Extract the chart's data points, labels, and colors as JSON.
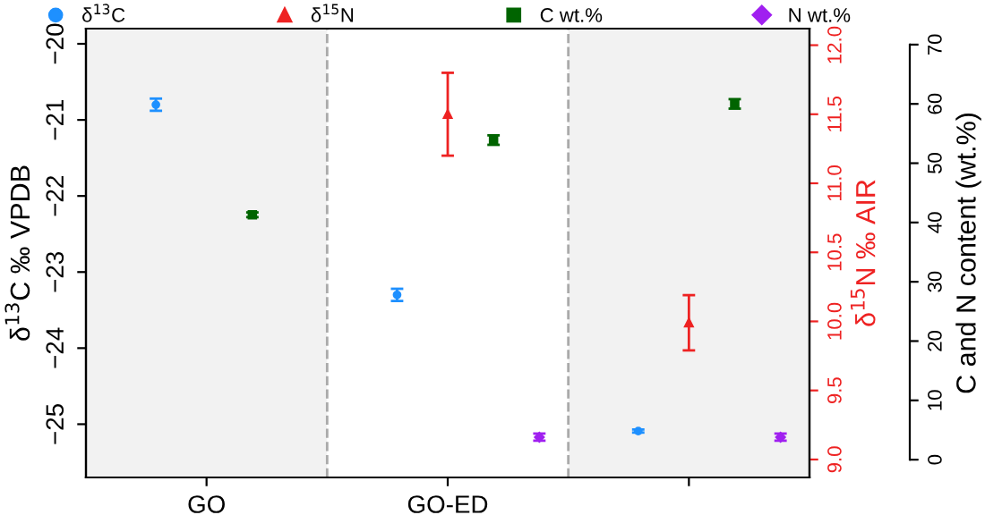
{
  "chart_data": {
    "type": "scatter",
    "categories": [
      "GO",
      "GO-ED",
      null
    ],
    "ylabel": "δ$^{13}$C ‰ VPDB",
    "y2label": "δ$^{15}$N ‰ AIR",
    "y3label": "C and N content (wt.%)",
    "ylim": [
      -25.7,
      -19.8
    ],
    "yticks": [
      -25,
      -24,
      -23,
      -22,
      -21,
      -20
    ],
    "y2lim": [
      8.87,
      12.12
    ],
    "y2ticks": [
      {
        "value": 9,
        "label": "9.0"
      },
      {
        "value": 9.5,
        "label": "9.5"
      },
      {
        "value": 10,
        "label": "10.0"
      },
      {
        "value": 10.5,
        "label": "10.5"
      },
      {
        "value": 11,
        "label": "11.0"
      },
      {
        "value": 11.5,
        "label": "11.5"
      },
      {
        "value": 12,
        "label": "12.0"
      }
    ],
    "y3lim": [
      -3,
      72.7
    ],
    "y3ticks": [
      0,
      10,
      20,
      30,
      40,
      50,
      60,
      70
    ],
    "legend": "top",
    "grid": false,
    "series": [
      {
        "name": "δ$^{13}$C",
        "color": "#1e90ff",
        "marker": "circle",
        "values": [
          -20.8,
          -23.3,
          -25.09
        ],
        "errors": [
          0.08,
          0.08,
          0.02
        ]
      },
      {
        "name": "δ$^{15}$N",
        "color": "#ee2222",
        "marker": "triangle",
        "axis": "y2",
        "values": [
          null,
          11.5,
          9.99
        ],
        "errors": [
          null,
          0.3,
          0.2
        ]
      },
      {
        "name": "C wt.%",
        "color": "#006400",
        "marker": "square",
        "axis": "y3",
        "values": [
          41.3,
          53.9,
          60.0
        ],
        "errors": [
          0.4,
          0.8,
          0.8
        ]
      },
      {
        "name": "N wt.%",
        "color": "#a020f0",
        "marker": "diamond",
        "axis": "y3",
        "values": [
          null,
          3.8,
          3.8
        ],
        "errors": [
          null,
          0.6,
          0.6
        ]
      }
    ]
  }
}
